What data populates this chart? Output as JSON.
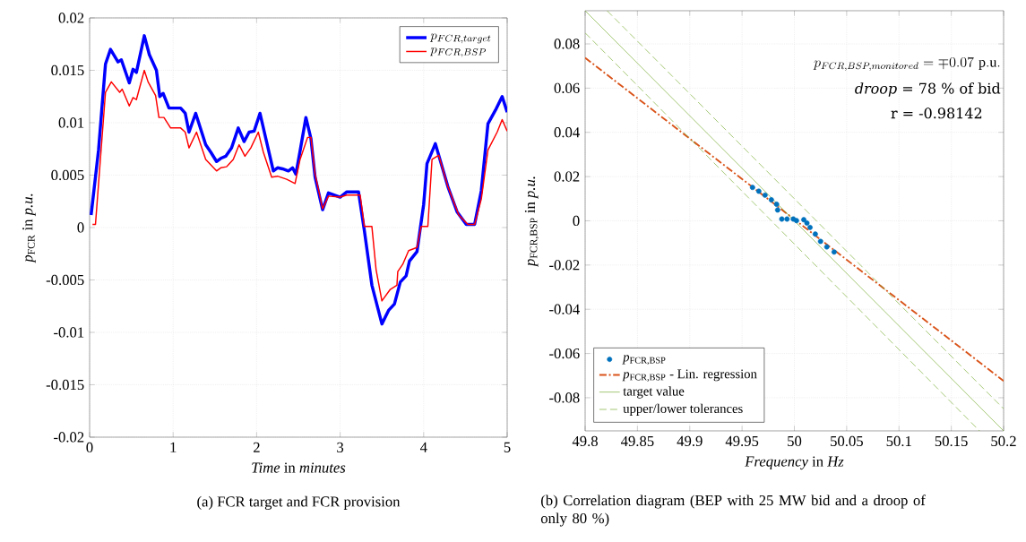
{
  "chart_data": [
    {
      "type": "line",
      "xlabel": "*Time* in *minutes*",
      "ylabel": "*p*$_{FCR}$ in *p.u.*",
      "xlim": [
        0,
        5
      ],
      "xticks": [
        0,
        1,
        2,
        3,
        4,
        5
      ],
      "ylim": [
        -0.02,
        0.02
      ],
      "yticks": [
        -0.02,
        -0.015,
        -0.01,
        -0.005,
        0,
        0.005,
        0.01,
        0.015,
        0.02
      ],
      "grid": true,
      "legend": "top right",
      "annotations": [
        "(a) FCR target and FCR provision"
      ],
      "series": [
        {
          "name": "p_{FCR,target}",
          "color": "#0000ff",
          "x": [
            0.018,
            0.107,
            0.19,
            0.25,
            0.34,
            0.38,
            0.475,
            0.52,
            0.56,
            0.655,
            0.715,
            0.8,
            0.84,
            0.88,
            0.95,
            1.09,
            1.145,
            1.19,
            1.27,
            1.39,
            1.45,
            1.52,
            1.57,
            1.63,
            1.7,
            1.78,
            1.85,
            1.91,
            1.97,
            2.04,
            2.11,
            2.2,
            2.25,
            2.31,
            2.38,
            2.43,
            2.47,
            2.52,
            2.59,
            2.65,
            2.7,
            2.79,
            2.86,
            3.0,
            3.08,
            3.22,
            3.29,
            3.38,
            3.5,
            3.58,
            3.65,
            3.72,
            3.79,
            3.83,
            3.92,
            4.0,
            4.04,
            4.14,
            4.29,
            4.4,
            4.51,
            4.61,
            4.69,
            4.77,
            4.86,
            4.94,
            5.0
          ],
          "values": [
            0.0012,
            0.0074,
            0.0156,
            0.017,
            0.0158,
            0.016,
            0.0138,
            0.0151,
            0.0148,
            0.0183,
            0.0165,
            0.015,
            0.0125,
            0.0128,
            0.0114,
            0.0114,
            0.0109,
            0.0091,
            0.0109,
            0.0079,
            0.0072,
            0.0063,
            0.0066,
            0.0068,
            0.0076,
            0.0095,
            0.0082,
            0.0091,
            0.0092,
            0.0109,
            0.0085,
            0.0054,
            0.0057,
            0.0056,
            0.0054,
            0.0057,
            0.0051,
            0.0073,
            0.0105,
            0.0085,
            0.0048,
            0.0017,
            0.0033,
            0.0029,
            0.0034,
            0.0034,
            -0.0003,
            -0.0055,
            -0.0092,
            -0.0079,
            -0.0073,
            -0.0052,
            -0.0046,
            -0.0032,
            -0.0023,
            0.0022,
            0.0061,
            0.008,
            0.0039,
            0.0015,
            0.0003,
            0.0003,
            0.0035,
            0.0099,
            0.0112,
            0.0125,
            0.011
          ]
        },
        {
          "name": "p_{FCR,BSP}",
          "color": "#ff0000",
          "x": [
            0.035,
            0.07,
            0.19,
            0.26,
            0.36,
            0.39,
            0.475,
            0.52,
            0.56,
            0.655,
            0.7,
            0.79,
            0.83,
            0.89,
            0.97,
            1.09,
            1.145,
            1.19,
            1.28,
            1.39,
            1.52,
            1.57,
            1.64,
            1.72,
            1.79,
            1.86,
            1.93,
            2.02,
            2.08,
            2.18,
            2.25,
            2.36,
            2.46,
            2.52,
            2.61,
            2.65,
            2.7,
            2.79,
            2.86,
            3.0,
            3.08,
            3.24,
            3.29,
            3.38,
            3.43,
            3.5,
            3.6,
            3.68,
            3.69,
            3.75,
            3.82,
            3.92,
            3.97,
            4.05,
            4.1,
            4.18,
            4.29,
            4.42,
            4.53,
            4.61,
            4.69,
            4.77,
            4.88,
            4.94,
            5.0
          ],
          "values": [
            0.0003,
            0.0003,
            0.0129,
            0.0139,
            0.0129,
            0.0132,
            0.0116,
            0.0124,
            0.0122,
            0.015,
            0.0139,
            0.0126,
            0.0105,
            0.0105,
            0.0095,
            0.0095,
            0.0091,
            0.0076,
            0.0091,
            0.0065,
            0.0054,
            0.0057,
            0.0058,
            0.0065,
            0.0079,
            0.0068,
            0.0076,
            0.0091,
            0.0072,
            0.0048,
            0.0049,
            0.0046,
            0.0042,
            0.0065,
            0.0086,
            0.0086,
            0.0051,
            0.0018,
            0.003,
            0.0029,
            0.0031,
            0.0031,
            0.0001,
            0.0001,
            -0.004,
            -0.007,
            -0.0059,
            -0.0055,
            -0.0042,
            -0.0035,
            -0.0022,
            -0.0019,
            0.0001,
            0.0001,
            0.0065,
            0.0069,
            0.0039,
            0.0012,
            0.0003,
            0.0003,
            0.0027,
            0.0074,
            0.0091,
            0.0103,
            0.0092
          ]
        }
      ]
    },
    {
      "type": "scatter",
      "xlabel": "*Frequency* in *Hz*",
      "ylabel": "*p*$_{FCR,BSP}$ in *p.u.*",
      "xlim": [
        49.8,
        50.2
      ],
      "xticks": [
        49.8,
        49.85,
        49.9,
        49.95,
        50,
        50.05,
        50.1,
        50.15,
        50.2
      ],
      "ylim": [
        -0.095,
        0.095
      ],
      "yticks": [
        -0.08,
        -0.06,
        -0.04,
        -0.02,
        0,
        0.02,
        0.04,
        0.06,
        0.08
      ],
      "grid": true,
      "legend": "bottom left",
      "annotations": [
        "p_{FCR,BSP,monitored} = \\mp 0.07\\ \\mathrm{p.u.}",
        "*droop* = 78 % of bid",
        "r = -0.98142",
        "(b) Correlation diagram (BEP with 25 MW bid and a droop of only 80 %)"
      ],
      "series": [
        {
          "name": "*p*$_{FCR,BSP}$",
          "type": "scatter",
          "marker": "circle",
          "color": "#0072bd",
          "x": [
            49.96,
            49.966,
            49.972,
            49.978,
            49.983,
            49.984,
            49.988,
            49.993,
            49.999,
            50.002,
            50.009,
            50.012,
            50.015,
            50.02,
            50.025,
            50.031,
            50.038
          ],
          "values": [
            0.0151,
            0.0134,
            0.0116,
            0.0095,
            0.0075,
            0.0049,
            0.0008,
            0.0008,
            0.0008,
            0.0001,
            0.0005,
            -0.001,
            -0.003,
            -0.006,
            -0.0093,
            -0.0118,
            -0.0141
          ]
        },
        {
          "name": "*p*$_{FCR,BSP}$ - Lin. regression",
          "type": "line",
          "line_style": "dashdot",
          "color": "#d95319",
          "x": [
            49.8,
            50.2
          ],
          "values": [
            0.0737,
            -0.0724
          ]
        },
        {
          "name": "target value",
          "type": "line",
          "line_style": "solid",
          "color": "#77ac30",
          "x": [
            49.8,
            50.2
          ],
          "values": [
            0.095,
            -0.095
          ]
        },
        {
          "name": "upper/lower tolerances",
          "type": "line",
          "line_style": "dashed",
          "color": "#77ac30",
          "x": [
            49.821,
            50.2
          ],
          "values": [
            0.095,
            -0.085
          ]
        },
        {
          "type": "line",
          "line_style": "dashed",
          "color": "#77ac30",
          "x": [
            49.8,
            50.177
          ],
          "values": [
            0.085,
            -0.095
          ]
        }
      ]
    }
  ]
}
